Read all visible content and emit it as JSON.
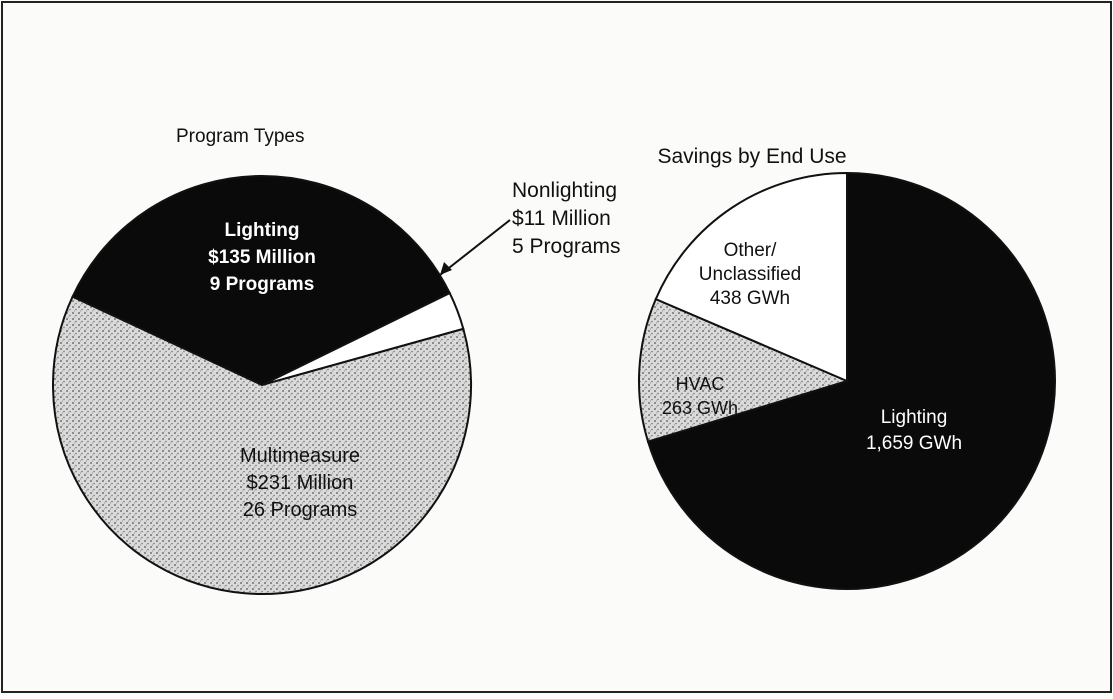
{
  "colors": {
    "background": "#fbfbfa",
    "ink": "#111111",
    "solid_fill": "#0a0a0a",
    "stipple_fill": "#d9d9d9",
    "open_fill": "#ffffff"
  },
  "chart_data": [
    {
      "type": "pie",
      "title": "Program Types",
      "slices": [
        {
          "label": "Lighting",
          "lines": [
            "Lighting",
            "$135 Million",
            "9 Programs"
          ],
          "value": 135,
          "unit": "$ Million",
          "programs": 9,
          "fill": "solid"
        },
        {
          "label": "Nonlighting",
          "lines": [
            "Nonlighting",
            "$11 Million",
            "5 Programs"
          ],
          "value": 11,
          "unit": "$ Million",
          "programs": 5,
          "fill": "open"
        },
        {
          "label": "Multimeasure",
          "lines": [
            "Multimeasure",
            "$231 Million",
            "26 Programs"
          ],
          "value": 231,
          "unit": "$ Million",
          "programs": 26,
          "fill": "stipple"
        }
      ]
    },
    {
      "type": "pie",
      "title": "Savings by End Use",
      "slices": [
        {
          "label": "Lighting",
          "lines": [
            "Lighting",
            "1,659 GWh"
          ],
          "value": 1659,
          "unit": "GWh",
          "fill": "solid"
        },
        {
          "label": "HVAC",
          "lines": [
            "HVAC",
            "263 GWh"
          ],
          "value": 263,
          "unit": "GWh",
          "fill": "stipple"
        },
        {
          "label": "Other/Unclassified",
          "lines": [
            "Other/",
            "Unclassified",
            "438 GWh"
          ],
          "value": 438,
          "unit": "GWh",
          "fill": "open"
        }
      ]
    }
  ]
}
